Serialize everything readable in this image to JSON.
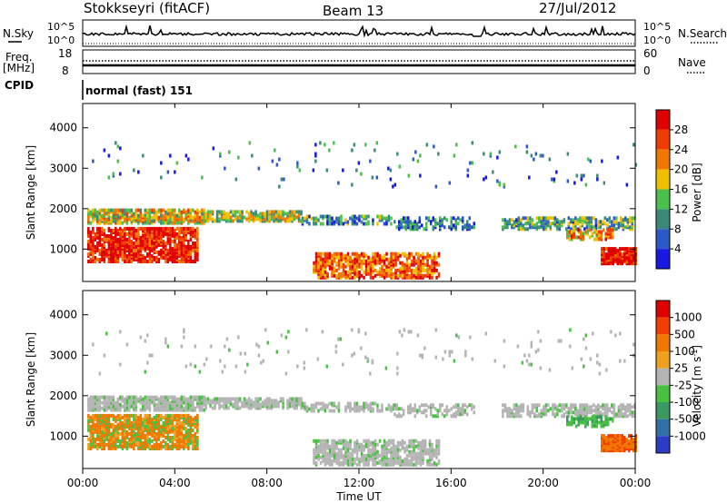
{
  "header": {
    "title": "Stokkseyri (fitACF)",
    "beam": "Beam 13",
    "date": "27/Jul/2012"
  },
  "noise_panel": {
    "left_label": "N.Sky",
    "right_label": "N.Search",
    "left_ticks": [
      "10^5",
      "10^0"
    ],
    "right_ticks": [
      "10^5",
      "10^0"
    ]
  },
  "freq_panel": {
    "left_label_1": "Freq.",
    "left_label_2": "[MHz]",
    "left_ticks": [
      "18",
      "8"
    ],
    "right_label": "Nave",
    "right_ticks": [
      "60",
      "0"
    ]
  },
  "cpid": {
    "label": "CPID",
    "value": "normal (fast) 151"
  },
  "chart_data": [
    {
      "type": "heatmap",
      "parameter": "Power",
      "ylabel": "Slant Range [km]",
      "yticks": [
        "1000",
        "2000",
        "3000",
        "4000"
      ],
      "ylim": [
        200,
        4600
      ],
      "xlim": [
        "00:00",
        "24:00"
      ],
      "colorbar_label": "Power [dB]",
      "colorbar_ticks": [
        "4",
        "8",
        "12",
        "16",
        "20",
        "24",
        "28"
      ],
      "colors": [
        "#1818e0",
        "#2c58c8",
        "#3a8a7a",
        "#48c04a",
        "#f0c000",
        "#f07800",
        "#f03c00",
        "#e00000"
      ]
    },
    {
      "type": "heatmap",
      "parameter": "Velocity",
      "ylabel": "Slant Range [km]",
      "yticks": [
        "1000",
        "2000",
        "3000",
        "4000"
      ],
      "ylim": [
        200,
        4600
      ],
      "xlim": [
        "00:00",
        "24:00"
      ],
      "colorbar_label": "Velocity [m s",
      "colorbar_label_sup": "-1",
      "colorbar_label_end": "]",
      "colorbar_ticks": [
        "1000",
        "500",
        "100",
        "25",
        "-25",
        "-100",
        "-500",
        "-1000"
      ],
      "colors": [
        "#2c3cc8",
        "#3070a8",
        "#3a9860",
        "#48c040",
        "#b4b4b4",
        "#f0a020",
        "#f07800",
        "#f04000",
        "#e00000"
      ]
    }
  ],
  "x_axis": {
    "ticks": [
      "00:00",
      "04:00",
      "08:00",
      "12:00",
      "16:00",
      "20:00",
      "00:00"
    ],
    "label": "Time UT"
  }
}
